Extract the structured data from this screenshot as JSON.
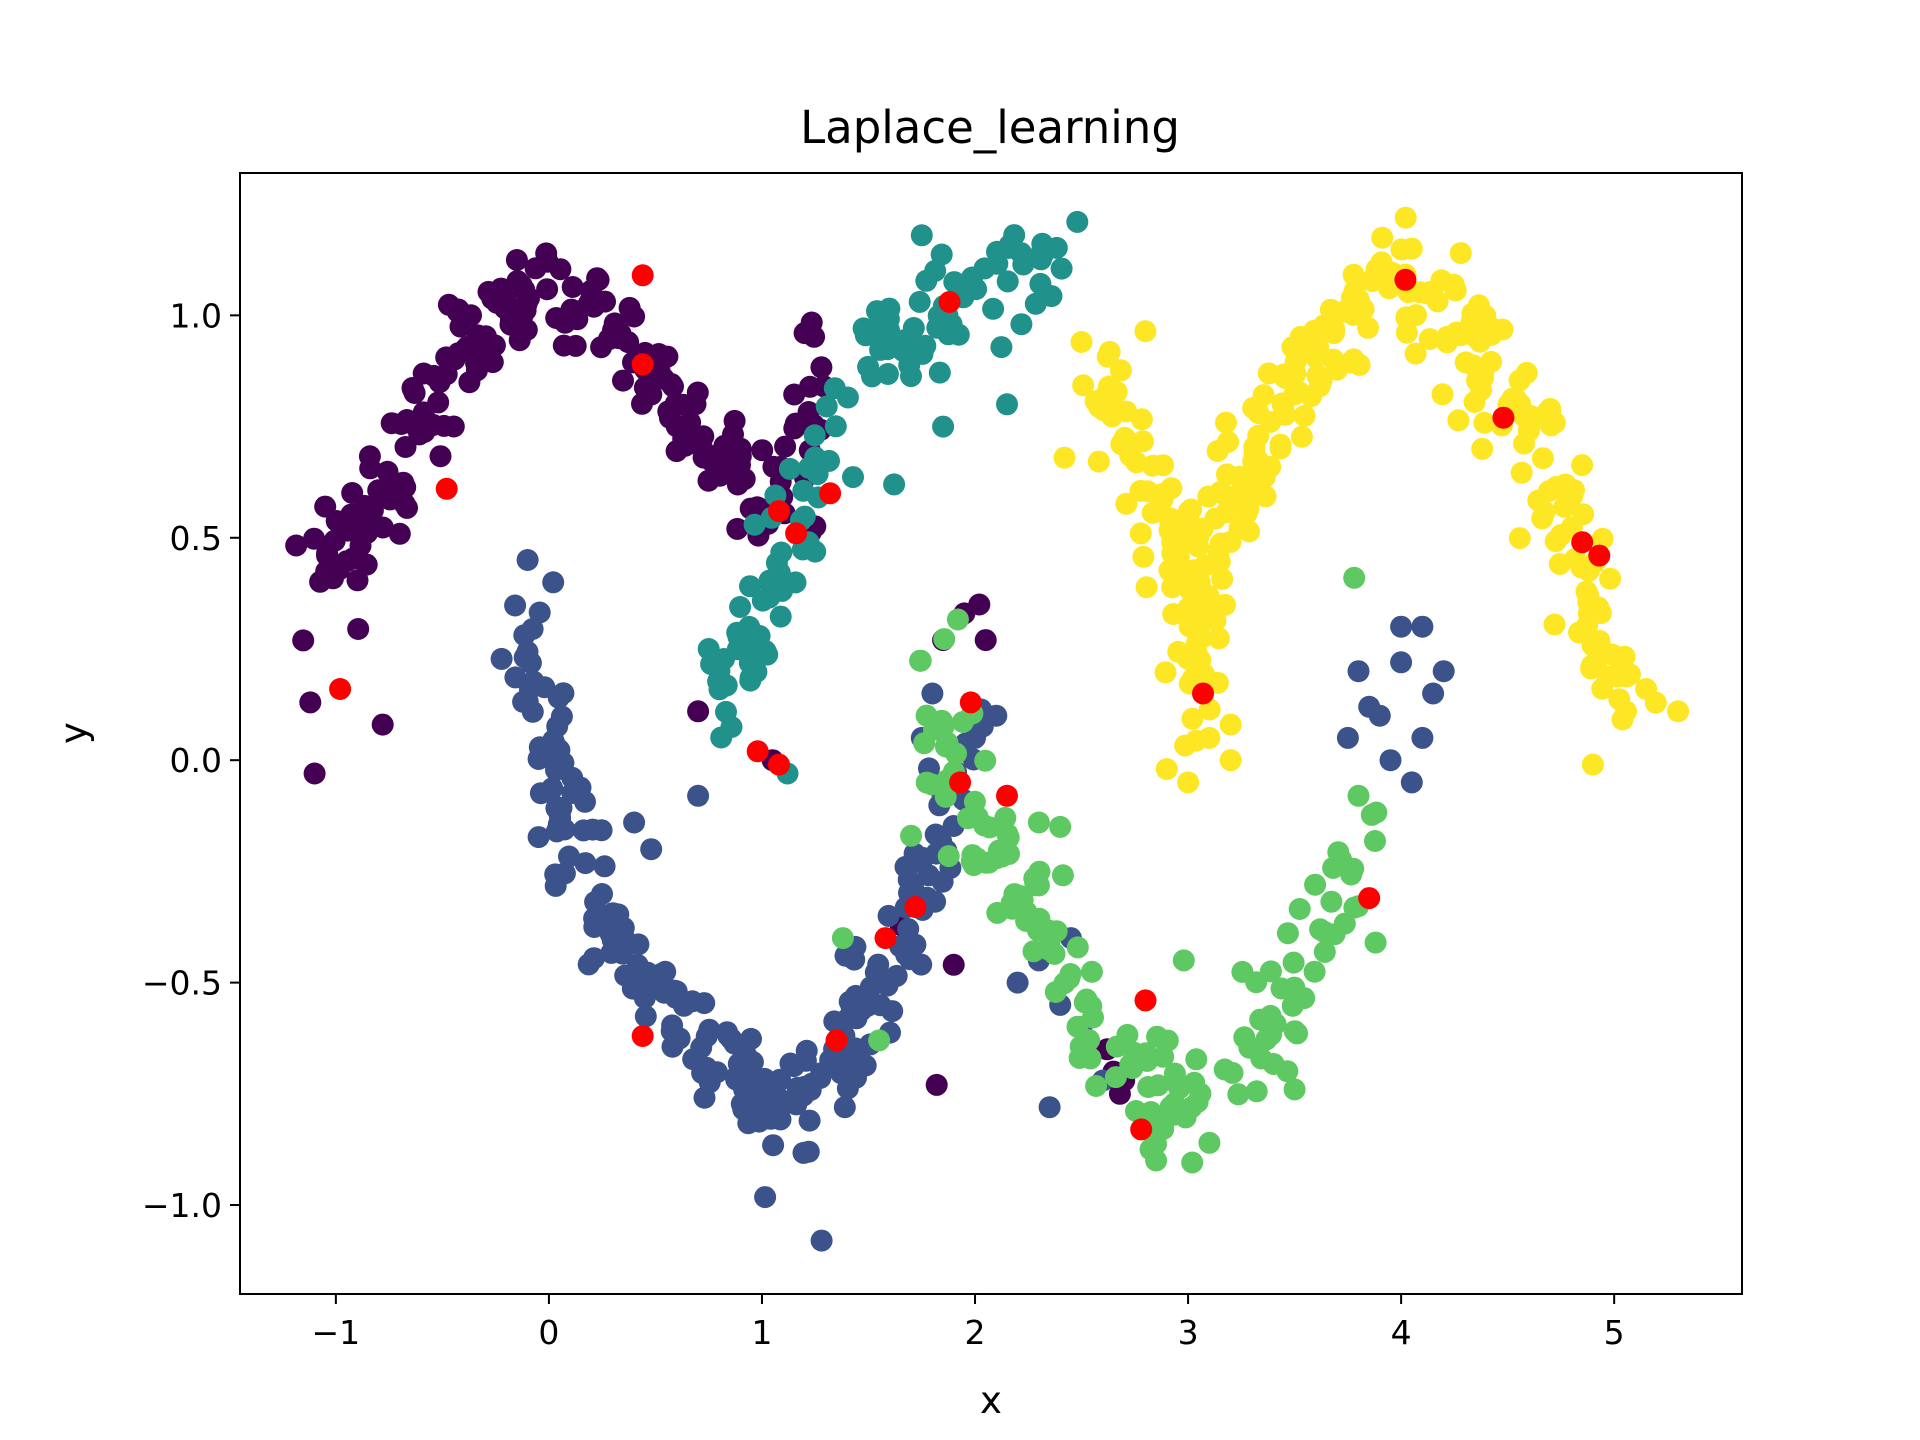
{
  "chart_data": {
    "type": "scatter",
    "title": "Laplace_learning",
    "xlabel": "x",
    "ylabel": "y",
    "xlim": [
      -1.45,
      5.6
    ],
    "ylim": [
      -1.2,
      1.32
    ],
    "xticks": [
      -1,
      0,
      1,
      2,
      3,
      4,
      5
    ],
    "yticks": [
      -1.0,
      -0.5,
      0.0,
      0.5,
      1.0
    ],
    "xtick_labels": [
      "−1",
      "0",
      "1",
      "2",
      "3",
      "4",
      "5"
    ],
    "ytick_labels": [
      "−1.0",
      "−0.5",
      "0.0",
      "0.5",
      "1.0"
    ],
    "grid": false,
    "legend": "none",
    "colors": {
      "class_0": "#440154",
      "class_1": "#3b528b",
      "class_2": "#21918c",
      "class_3": "#5ec962",
      "class_4": "#fde725",
      "labeled": "#ff0000"
    },
    "series": [
      {
        "color_key": "class_0",
        "curve": [
          [
            -1.1,
            0.35
          ],
          [
            -0.95,
            0.45
          ],
          [
            -0.8,
            0.6
          ],
          [
            -0.6,
            0.78
          ],
          [
            -0.4,
            0.92
          ],
          [
            -0.2,
            1.0
          ],
          [
            0.0,
            1.05
          ],
          [
            0.2,
            1.0
          ],
          [
            0.4,
            0.9
          ],
          [
            0.6,
            0.8
          ],
          [
            0.8,
            0.68
          ],
          [
            1.0,
            0.58
          ],
          [
            1.15,
            0.55
          ],
          [
            1.2,
            0.75
          ],
          [
            1.35,
            0.9
          ]
        ],
        "spread": 0.06,
        "count": 210,
        "extra": [
          [
            -1.05,
            0.57
          ],
          [
            -1.12,
            0.13
          ],
          [
            -1.1,
            -0.03
          ],
          [
            -0.78,
            0.08
          ],
          [
            0.7,
            0.11
          ],
          [
            1.05,
            0.0
          ],
          [
            1.85,
            0.27
          ],
          [
            1.95,
            0.33
          ],
          [
            2.02,
            0.35
          ],
          [
            2.05,
            0.27
          ],
          [
            1.65,
            -0.37
          ],
          [
            1.9,
            -0.46
          ],
          [
            1.82,
            -0.73
          ],
          [
            2.62,
            -0.65
          ],
          [
            2.65,
            -0.7
          ],
          [
            2.7,
            -0.72
          ],
          [
            2.68,
            -0.75
          ],
          [
            0.98,
            0.27
          ],
          [
            1.2,
            0.96
          ]
        ]
      },
      {
        "color_key": "class_1",
        "curve": [
          [
            -0.1,
            0.3
          ],
          [
            0.0,
            0.05
          ],
          [
            0.1,
            -0.15
          ],
          [
            0.25,
            -0.35
          ],
          [
            0.45,
            -0.5
          ],
          [
            0.7,
            -0.62
          ],
          [
            0.9,
            -0.72
          ],
          [
            1.1,
            -0.76
          ],
          [
            1.3,
            -0.7
          ],
          [
            1.5,
            -0.55
          ],
          [
            1.7,
            -0.35
          ],
          [
            1.85,
            -0.15
          ],
          [
            1.95,
            0.05
          ]
        ],
        "spread": 0.06,
        "count": 230,
        "extra": [
          [
            -0.1,
            0.45
          ],
          [
            0.02,
            0.4
          ],
          [
            0.4,
            -0.14
          ],
          [
            0.48,
            -0.2
          ],
          [
            0.7,
            -0.08
          ],
          [
            1.28,
            -1.08
          ],
          [
            1.22,
            -0.88
          ],
          [
            2.3,
            -0.45
          ],
          [
            2.4,
            -0.55
          ],
          [
            2.5,
            -0.6
          ],
          [
            2.35,
            -0.78
          ],
          [
            2.6,
            -0.72
          ],
          [
            2.2,
            -0.5
          ],
          [
            2.45,
            -0.4
          ],
          [
            3.8,
            0.2
          ],
          [
            3.9,
            0.1
          ],
          [
            4.0,
            0.22
          ],
          [
            4.1,
            0.3
          ],
          [
            4.2,
            0.2
          ],
          [
            3.95,
            0.0
          ],
          [
            3.75,
            0.05
          ],
          [
            4.05,
            -0.05
          ],
          [
            4.15,
            0.15
          ],
          [
            4.0,
            0.3
          ],
          [
            3.85,
            0.12
          ],
          [
            4.1,
            0.05
          ],
          [
            1.8,
            0.15
          ],
          [
            1.75,
            0.05
          ],
          [
            2.0,
            0.05
          ],
          [
            2.1,
            0.1
          ]
        ]
      },
      {
        "color_key": "class_2",
        "curve": [
          [
            0.85,
            0.1
          ],
          [
            0.95,
            0.25
          ],
          [
            1.05,
            0.4
          ],
          [
            1.15,
            0.5
          ],
          [
            1.25,
            0.65
          ],
          [
            1.4,
            0.8
          ],
          [
            1.6,
            0.92
          ],
          [
            1.8,
            1.02
          ],
          [
            2.0,
            1.08
          ],
          [
            2.2,
            1.1
          ],
          [
            2.4,
            1.12
          ]
        ],
        "spread": 0.06,
        "count": 120,
        "extra": [
          [
            0.75,
            0.25
          ],
          [
            0.8,
            0.2
          ],
          [
            1.12,
            -0.03
          ],
          [
            1.62,
            0.62
          ],
          [
            1.75,
            1.18
          ],
          [
            2.48,
            1.21
          ],
          [
            1.85,
            0.75
          ],
          [
            2.15,
            0.8
          ]
        ]
      },
      {
        "color_key": "class_3",
        "curve": [
          [
            1.8,
            0.18
          ],
          [
            1.88,
            0.0
          ],
          [
            2.0,
            -0.15
          ],
          [
            2.2,
            -0.3
          ],
          [
            2.45,
            -0.5
          ],
          [
            2.7,
            -0.66
          ],
          [
            2.95,
            -0.78
          ],
          [
            3.15,
            -0.74
          ],
          [
            3.35,
            -0.62
          ],
          [
            3.55,
            -0.45
          ],
          [
            3.7,
            -0.28
          ],
          [
            3.85,
            -0.1
          ]
        ],
        "spread": 0.06,
        "count": 160,
        "extra": [
          [
            3.78,
            0.41
          ],
          [
            1.38,
            -0.4
          ],
          [
            1.55,
            -0.63
          ],
          [
            1.7,
            -0.17
          ],
          [
            2.3,
            -0.14
          ],
          [
            2.4,
            -0.15
          ],
          [
            2.85,
            -0.9
          ],
          [
            2.98,
            -0.45
          ],
          [
            3.1,
            -0.86
          ],
          [
            3.5,
            -0.74
          ],
          [
            3.88,
            -0.41
          ],
          [
            3.8,
            -0.08
          ]
        ]
      },
      {
        "color_key": "class_4",
        "curve": [
          [
            2.6,
            0.85
          ],
          [
            2.75,
            0.7
          ],
          [
            2.9,
            0.55
          ],
          [
            3.0,
            0.35
          ],
          [
            3.05,
            0.15
          ],
          [
            3.1,
            0.4
          ],
          [
            3.2,
            0.6
          ],
          [
            3.35,
            0.75
          ],
          [
            3.55,
            0.88
          ],
          [
            3.75,
            0.98
          ],
          [
            3.95,
            1.05
          ],
          [
            4.15,
            1.02
          ],
          [
            4.35,
            0.92
          ],
          [
            4.55,
            0.78
          ],
          [
            4.7,
            0.6
          ],
          [
            4.85,
            0.42
          ],
          [
            4.95,
            0.25
          ],
          [
            5.05,
            0.08
          ]
        ],
        "spread": 0.07,
        "count": 300,
        "extra": [
          [
            2.42,
            0.68
          ],
          [
            2.5,
            0.94
          ],
          [
            3.2,
            0.0
          ],
          [
            2.9,
            -0.02
          ],
          [
            3.0,
            -0.05
          ],
          [
            4.9,
            -0.01
          ],
          [
            5.3,
            0.11
          ],
          [
            5.15,
            0.16
          ],
          [
            4.05,
            1.15
          ],
          [
            4.28,
            1.14
          ],
          [
            3.1,
            0.05
          ],
          [
            3.2,
            0.08
          ]
        ]
      }
    ],
    "labeled_points": [
      [
        -0.48,
        0.61
      ],
      [
        0.44,
        1.09
      ],
      [
        0.44,
        0.89
      ],
      [
        -0.98,
        0.16
      ],
      [
        1.08,
        0.56
      ],
      [
        1.16,
        0.51
      ],
      [
        1.32,
        0.6
      ],
      [
        0.98,
        0.02
      ],
      [
        1.08,
        -0.01
      ],
      [
        1.88,
        1.03
      ],
      [
        1.98,
        0.13
      ],
      [
        1.93,
        -0.05
      ],
      [
        2.15,
        -0.08
      ],
      [
        1.72,
        -0.33
      ],
      [
        1.58,
        -0.4
      ],
      [
        1.35,
        -0.63
      ],
      [
        0.44,
        -0.62
      ],
      [
        2.8,
        -0.54
      ],
      [
        2.78,
        -0.83
      ],
      [
        3.07,
        0.15
      ],
      [
        3.85,
        -0.31
      ],
      [
        4.02,
        1.08
      ],
      [
        4.48,
        0.77
      ],
      [
        4.85,
        0.49
      ],
      [
        4.93,
        0.46
      ]
    ]
  }
}
